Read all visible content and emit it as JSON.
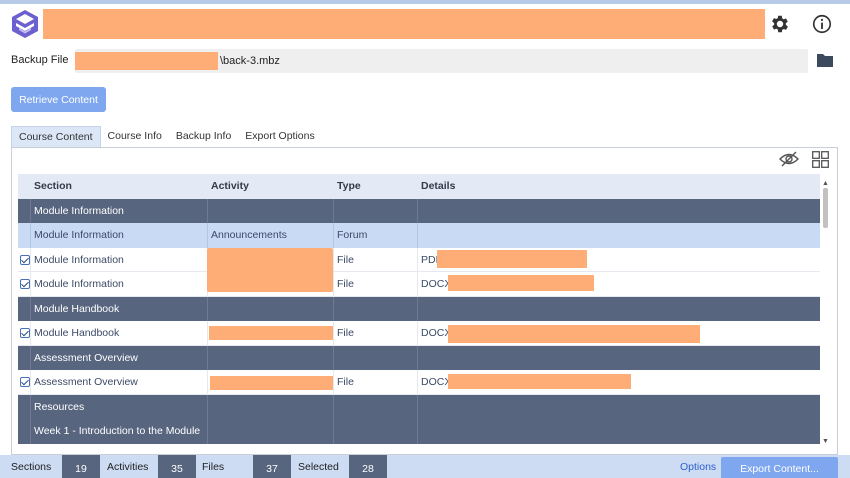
{
  "backup": {
    "label": "Backup File",
    "file_suffix": "\\back-3.mbz"
  },
  "buttons": {
    "retrieve": "Retrieve Content",
    "export": "Export Content..."
  },
  "tabs": [
    "Course Content",
    "Course Info",
    "Backup Info",
    "Export Options"
  ],
  "table": {
    "headers": [
      "Section",
      "Activity",
      "Type",
      "Details"
    ],
    "rows": [
      {
        "kind": "section",
        "section": "Module Information",
        "activity": "",
        "type": "",
        "details": ""
      },
      {
        "kind": "selected",
        "section": "Module Information",
        "activity": "Announcements",
        "type": "Forum",
        "details": ""
      },
      {
        "kind": "item",
        "checked": true,
        "section": "Module Information",
        "activity": "",
        "type": "File",
        "details": "PDF:"
      },
      {
        "kind": "item",
        "checked": true,
        "section": "Module Information",
        "activity": "",
        "type": "File",
        "details": "DOCX:"
      },
      {
        "kind": "section",
        "section": "Module Handbook",
        "activity": "",
        "type": "",
        "details": ""
      },
      {
        "kind": "item",
        "checked": true,
        "section": "Module Handbook",
        "activity": "",
        "type": "File",
        "details": "DOCX:"
      },
      {
        "kind": "section",
        "section": "Assessment Overview",
        "activity": "",
        "type": "",
        "details": ""
      },
      {
        "kind": "item",
        "checked": true,
        "section": "Assessment Overview",
        "activity": "",
        "type": "File",
        "details": "DOCX:"
      },
      {
        "kind": "section",
        "section": "Resources",
        "activity": "",
        "type": "",
        "details": ""
      },
      {
        "kind": "section",
        "section": "Week 1 - Introduction to the Module",
        "activity": "",
        "type": "",
        "details": ""
      }
    ]
  },
  "status": {
    "sections_label": "Sections",
    "sections": "19",
    "activities_label": "Activities",
    "activities": "35",
    "files_label": "Files",
    "files": "37",
    "selected_label": "Selected",
    "selected": "28",
    "options": "Options"
  },
  "icons": {
    "app": "app-logo-icon",
    "settings": "gear-icon",
    "info": "info-icon",
    "folder": "folder-icon",
    "visibility": "eye-slash-icon",
    "layout": "grid-icon",
    "checkbox": "checkbox-checked-icon"
  },
  "colors": {
    "accent": "#7ea7ef",
    "section_row": "#58657f",
    "selected_row": "#c9daf5",
    "redaction": "#ffad76",
    "status_bar": "#cddcf2"
  }
}
